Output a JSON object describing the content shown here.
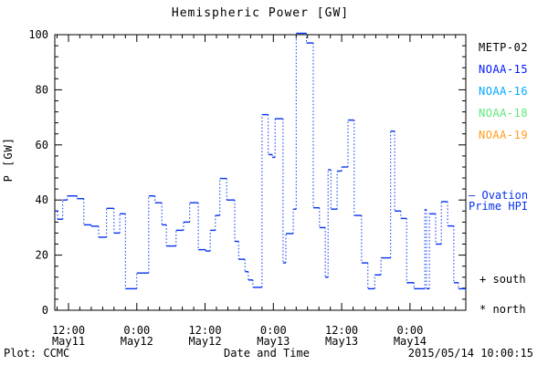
{
  "title": "Hemispheric Power [GW]",
  "footer": {
    "plot_credit": "Plot: CCMC",
    "xlabel": "Date and Time",
    "timestamp": "2015/05/14 10:00:15"
  },
  "legend": {
    "satellites": [
      {
        "label": "METP-02",
        "color": "#000000"
      },
      {
        "label": "NOAA-15",
        "color": "#0019ff"
      },
      {
        "label": "NOAA-16",
        "color": "#00aaff"
      },
      {
        "label": "NOAA-18",
        "color": "#5ce87a"
      },
      {
        "label": "NOAA-19",
        "color": "#ff9d1c"
      }
    ],
    "model": {
      "sample": "–",
      "line1": "Ovation",
      "line2": "Prime HPI",
      "color": "#0433ef"
    },
    "markers": [
      {
        "symbol": "+",
        "label": "south"
      },
      {
        "symbol": "*",
        "label": "north"
      }
    ]
  },
  "chart_data": {
    "type": "line",
    "subtype": "step-hourly",
    "title": "Hemispheric Power [GW]",
    "xlabel": "Date and Time",
    "ylabel": "P [GW]",
    "ylim": [
      0,
      100
    ],
    "y_major_ticks": [
      0,
      20,
      40,
      60,
      80,
      100
    ],
    "y_minor_step": 4,
    "x_hours_span": 72.2,
    "x_minor_step_hours": 2,
    "x_minor_start_hour": 0.4,
    "x_major_ticks": [
      {
        "h": 2.4,
        "time": "12:00",
        "date": "May11"
      },
      {
        "h": 14.4,
        "time": "0:00",
        "date": "May12"
      },
      {
        "h": 26.4,
        "time": "12:00",
        "date": "May12"
      },
      {
        "h": 38.4,
        "time": "0:00",
        "date": "May13"
      },
      {
        "h": 50.4,
        "time": "12:00",
        "date": "May13"
      },
      {
        "h": 62.4,
        "time": "0:00",
        "date": "May14"
      }
    ],
    "line_color": "#0433ef",
    "series_name": "Ovation Prime HPI",
    "end_h": 72.2,
    "steps": [
      [
        0,
        36
      ],
      [
        0.5,
        33
      ],
      [
        1.4,
        40
      ],
      [
        2.2,
        41.5
      ],
      [
        3.9,
        40.5
      ],
      [
        5.1,
        31
      ],
      [
        6.4,
        30.5
      ],
      [
        7.7,
        26.5
      ],
      [
        9.1,
        37
      ],
      [
        10.4,
        28
      ],
      [
        11.4,
        35
      ],
      [
        12.4,
        7.8
      ],
      [
        14.4,
        13.5
      ],
      [
        16.5,
        41.5
      ],
      [
        17.6,
        39
      ],
      [
        18.8,
        31
      ],
      [
        19.6,
        23.3
      ],
      [
        21.3,
        29
      ],
      [
        22.6,
        32
      ],
      [
        23.7,
        39
      ],
      [
        25.2,
        22
      ],
      [
        26.5,
        21.5
      ],
      [
        27.3,
        29
      ],
      [
        28.2,
        34.4
      ],
      [
        29.0,
        47.8
      ],
      [
        30.2,
        40
      ],
      [
        31.6,
        25
      ],
      [
        32.3,
        18.5
      ],
      [
        33.4,
        14
      ],
      [
        34.0,
        11
      ],
      [
        34.8,
        8.3
      ],
      [
        36.4,
        71
      ],
      [
        37.5,
        56.5
      ],
      [
        38.2,
        55.5
      ],
      [
        38.7,
        69.5
      ],
      [
        40.1,
        17.2
      ],
      [
        40.6,
        27.8
      ],
      [
        41.9,
        36.7
      ],
      [
        42.4,
        100.5
      ],
      [
        44.2,
        97
      ],
      [
        45.4,
        37.2
      ],
      [
        46.5,
        30
      ],
      [
        47.5,
        12
      ],
      [
        48.0,
        51
      ],
      [
        48.5,
        36.7
      ],
      [
        49.6,
        50.5
      ],
      [
        50.4,
        52
      ],
      [
        51.5,
        69
      ],
      [
        52.6,
        34.4
      ],
      [
        53.9,
        17.2
      ],
      [
        55.0,
        7.8
      ],
      [
        56.2,
        12.8
      ],
      [
        57.3,
        19
      ],
      [
        59.0,
        65
      ],
      [
        59.7,
        36
      ],
      [
        60.8,
        33.3
      ],
      [
        61.8,
        10
      ],
      [
        63.1,
        7.8
      ],
      [
        65.0,
        36.5
      ],
      [
        65.3,
        7.8
      ],
      [
        65.8,
        35
      ],
      [
        66.9,
        24
      ],
      [
        67.9,
        39.4
      ],
      [
        69.0,
        30.6
      ],
      [
        70.1,
        10
      ],
      [
        70.9,
        7.8
      ]
    ]
  }
}
